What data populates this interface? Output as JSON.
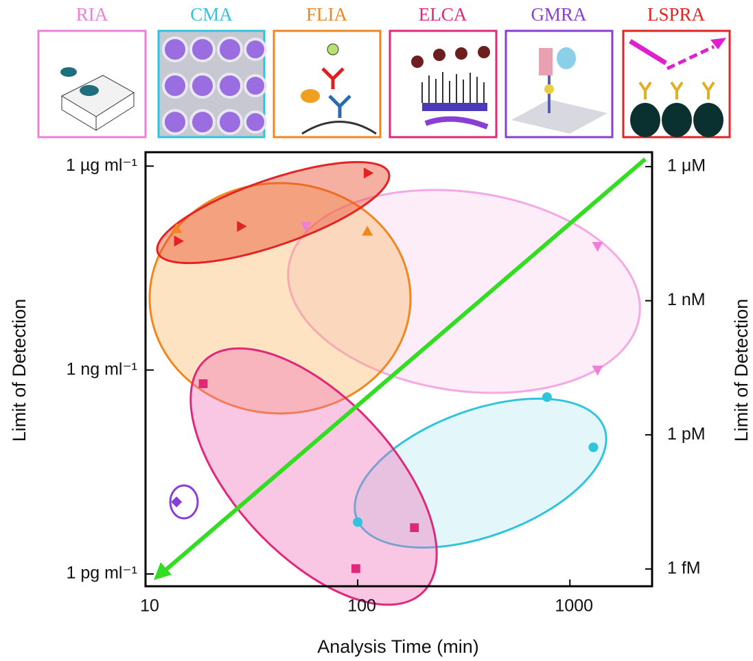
{
  "chart_data": {
    "type": "scatter",
    "xlabel": "Analysis Time (min)",
    "ylabel": "Limit of Detection",
    "y2label": "Limit of Detection",
    "xscale": "log",
    "yscale": "log",
    "xlim": [
      10,
      2440
    ],
    "xticks": [
      10,
      100,
      1000
    ],
    "ylim": [
      6.6e-13,
      1.6e-06
    ],
    "yticks": [
      {
        "value": 1e-06,
        "label": "1 µg ml⁻¹"
      },
      {
        "value": 1e-09,
        "label": "1 ng ml⁻¹"
      },
      {
        "value": 1e-12,
        "label": "1 pg ml⁻¹"
      }
    ],
    "y2lim": [
      4.1e-16,
      2.1e-06
    ],
    "y2ticks": [
      {
        "value": 1e-06,
        "label": "1 μM"
      },
      {
        "value": 1e-09,
        "label": "1 nM"
      },
      {
        "value": 1e-12,
        "label": "1 pM"
      },
      {
        "value": 1e-15,
        "label": "1 fM"
      }
    ],
    "series": [
      {
        "name": "RIA",
        "color": "#ee7fd8",
        "marker": "triangle-down",
        "x": [
          57,
          1350,
          1350
        ],
        "values": [
          1.3e-07,
          6.6e-08,
          1e-09
        ]
      },
      {
        "name": "CMA",
        "color": "#2ec4de",
        "marker": "circle",
        "x": [
          780,
          1290,
          100
        ],
        "values": [
          4e-10,
          7.3e-11,
          5.8e-12
        ]
      },
      {
        "name": "FLIA",
        "color": "#f0861c",
        "marker": "triangle-up",
        "x": [
          14,
          111
        ],
        "values": [
          1.2e-07,
          1.1e-07
        ]
      },
      {
        "name": "ELCA",
        "color": "#e0287a",
        "marker": "square",
        "x": [
          18.7,
          185,
          98
        ],
        "values": [
          6.3e-10,
          4.8e-12,
          1.2e-12
        ]
      },
      {
        "name": "GMRA",
        "color": "#8a3ed8",
        "marker": "diamond",
        "x": [
          14
        ],
        "values": [
          1.15e-11
        ]
      },
      {
        "name": "LSPRA",
        "color": "#e42222",
        "marker": "triangle-right",
        "x": [
          112,
          28.3,
          14.3
        ],
        "values": [
          7.9e-07,
          1.3e-07,
          7.9e-08
        ]
      }
    ]
  }
}
